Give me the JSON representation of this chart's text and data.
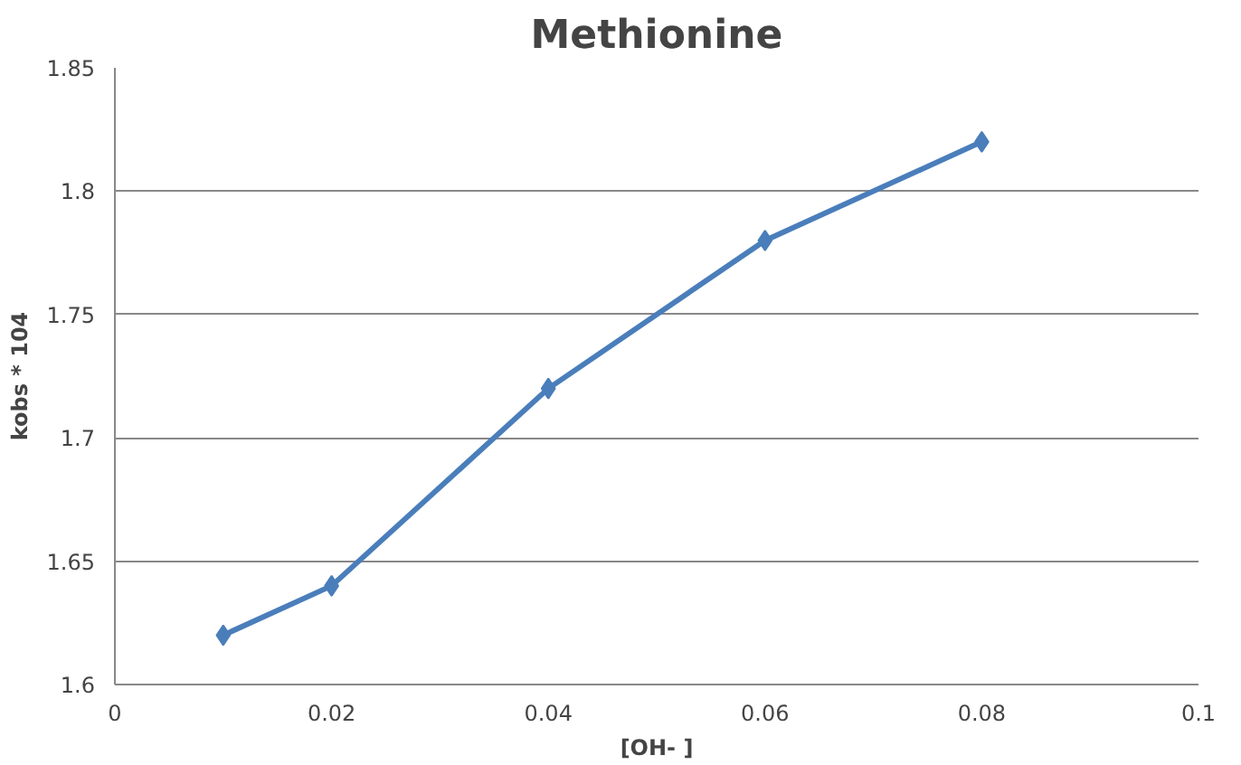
{
  "chart_data": {
    "type": "line",
    "title": "Methionine",
    "xlabel": "[OH- ]",
    "ylabel": "kobs * 104",
    "x": [
      0.01,
      0.02,
      0.04,
      0.06,
      0.08
    ],
    "series": [
      {
        "color": "#4a7ebb",
        "values": [
          1.62,
          1.64,
          1.72,
          1.78,
          1.82
        ]
      }
    ],
    "xlim": [
      0,
      0.1
    ],
    "xticks": [
      0,
      0.02,
      0.04,
      0.06,
      0.08,
      0.1
    ],
    "ylim": [
      1.6,
      1.85
    ],
    "yticks": [
      1.6,
      1.65,
      1.7,
      1.75,
      1.8,
      1.85
    ],
    "grid": "y",
    "marker": "diamond",
    "line_style": "solid"
  }
}
